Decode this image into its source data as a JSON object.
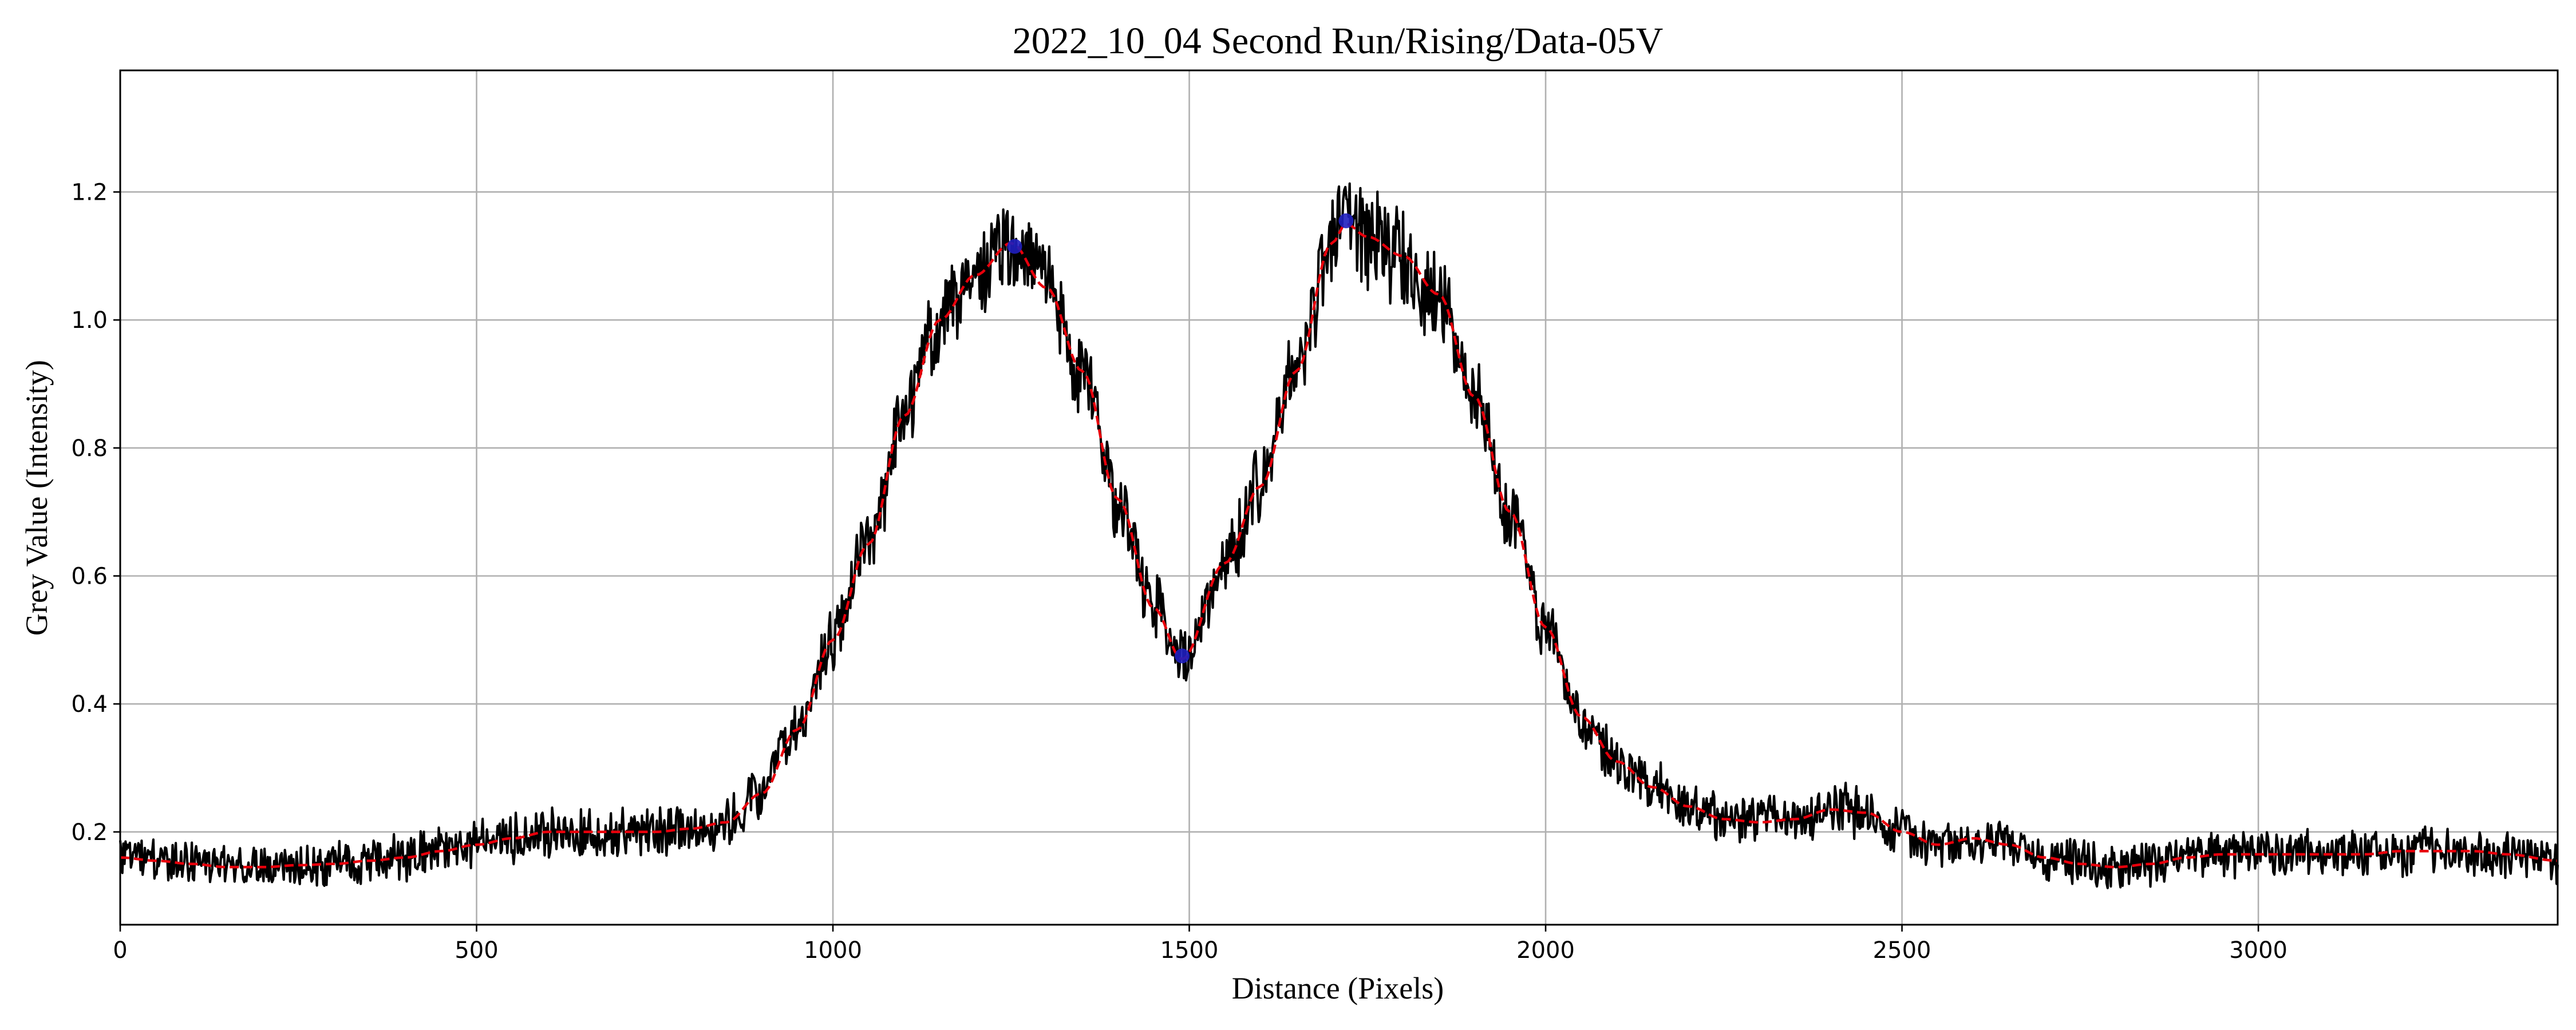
{
  "chart_data": {
    "type": "line",
    "title": "2022_10_04 Second Run/Rising/Data-05V",
    "xlabel": "Distance (Pixels)",
    "ylabel": "Grey Value (Intensity)",
    "xlim": [
      0,
      3420
    ],
    "ylim": [
      0.055,
      1.39
    ],
    "x_ticks": [
      0,
      500,
      1000,
      1500,
      2000,
      2500,
      3000
    ],
    "y_ticks": [
      0.2,
      0.4,
      0.6,
      0.8,
      1.0,
      1.2
    ],
    "x_tick_labels": [
      "0",
      "500",
      "1000",
      "1500",
      "2000",
      "2500",
      "3000"
    ],
    "y_tick_labels": [
      "0.2",
      "0.4",
      "0.6",
      "0.8",
      "1.0",
      "1.2"
    ],
    "grid": true,
    "series": [
      {
        "role": "raw-profile",
        "color": "#000000",
        "style": "solid",
        "x": [
          0,
          50,
          100,
          150,
          200,
          250,
          300,
          350,
          400,
          450,
          500,
          550,
          600,
          650,
          700,
          750,
          800,
          850,
          900,
          950,
          1000,
          1050,
          1100,
          1150,
          1200,
          1250,
          1300,
          1350,
          1400,
          1450,
          1490,
          1550,
          1600,
          1650,
          1700,
          1720,
          1750,
          1800,
          1850,
          1900,
          1950,
          2000,
          2050,
          2100,
          2150,
          2200,
          2250,
          2300,
          2350,
          2400,
          2450,
          2500,
          2550,
          2600,
          2650,
          2700,
          2750,
          2800,
          2850,
          2900,
          2950,
          3000,
          3050,
          3100,
          3150,
          3200,
          3250,
          3300,
          3350,
          3420
        ],
        "y": [
          0.16,
          0.155,
          0.15,
          0.145,
          0.145,
          0.148,
          0.15,
          0.155,
          0.16,
          0.17,
          0.18,
          0.19,
          0.2,
          0.2,
          0.2,
          0.2,
          0.205,
          0.215,
          0.26,
          0.36,
          0.5,
          0.65,
          0.85,
          1.0,
          1.07,
          1.12,
          1.05,
          0.92,
          0.72,
          0.55,
          0.47,
          0.62,
          0.74,
          0.92,
          1.12,
          1.15,
          1.13,
          1.1,
          1.04,
          0.88,
          0.7,
          0.52,
          0.38,
          0.31,
          0.27,
          0.24,
          0.22,
          0.215,
          0.22,
          0.235,
          0.23,
          0.2,
          0.18,
          0.19,
          0.18,
          0.16,
          0.15,
          0.145,
          0.15,
          0.16,
          0.165,
          0.165,
          0.165,
          0.165,
          0.165,
          0.17,
          0.17,
          0.17,
          0.165,
          0.155
        ],
        "noise_amplitude": 0.045
      },
      {
        "role": "smoothed-fit",
        "color": "#e8000b",
        "style": "dashed",
        "x": [
          0,
          50,
          100,
          150,
          200,
          250,
          300,
          350,
          400,
          450,
          500,
          550,
          600,
          650,
          700,
          750,
          800,
          850,
          900,
          950,
          1000,
          1050,
          1100,
          1150,
          1200,
          1250,
          1300,
          1350,
          1400,
          1450,
          1490,
          1550,
          1600,
          1650,
          1700,
          1720,
          1750,
          1800,
          1850,
          1900,
          1950,
          2000,
          2050,
          2100,
          2150,
          2200,
          2250,
          2300,
          2350,
          2400,
          2450,
          2500,
          2550,
          2600,
          2650,
          2700,
          2750,
          2800,
          2850,
          2900,
          2950,
          3000,
          3050,
          3100,
          3150,
          3200,
          3250,
          3300,
          3350,
          3420
        ],
        "y": [
          0.16,
          0.155,
          0.15,
          0.145,
          0.145,
          0.148,
          0.15,
          0.155,
          0.16,
          0.17,
          0.18,
          0.19,
          0.2,
          0.2,
          0.2,
          0.2,
          0.205,
          0.215,
          0.26,
          0.36,
          0.5,
          0.65,
          0.85,
          1.0,
          1.07,
          1.12,
          1.05,
          0.92,
          0.72,
          0.55,
          0.47,
          0.62,
          0.74,
          0.92,
          1.12,
          1.15,
          1.13,
          1.1,
          1.04,
          0.88,
          0.7,
          0.52,
          0.38,
          0.31,
          0.27,
          0.24,
          0.22,
          0.215,
          0.22,
          0.235,
          0.23,
          0.2,
          0.18,
          0.19,
          0.18,
          0.16,
          0.15,
          0.145,
          0.15,
          0.16,
          0.165,
          0.165,
          0.165,
          0.165,
          0.165,
          0.17,
          0.17,
          0.17,
          0.165,
          0.155
        ]
      }
    ],
    "markers": [
      {
        "role": "peak",
        "x": 1255,
        "y": 1.115,
        "color": "#1f1fbf"
      },
      {
        "role": "valley",
        "x": 1490,
        "y": 0.475,
        "color": "#1f1fbf"
      },
      {
        "role": "peak",
        "x": 1720,
        "y": 1.155,
        "color": "#1f1fbf"
      }
    ]
  }
}
